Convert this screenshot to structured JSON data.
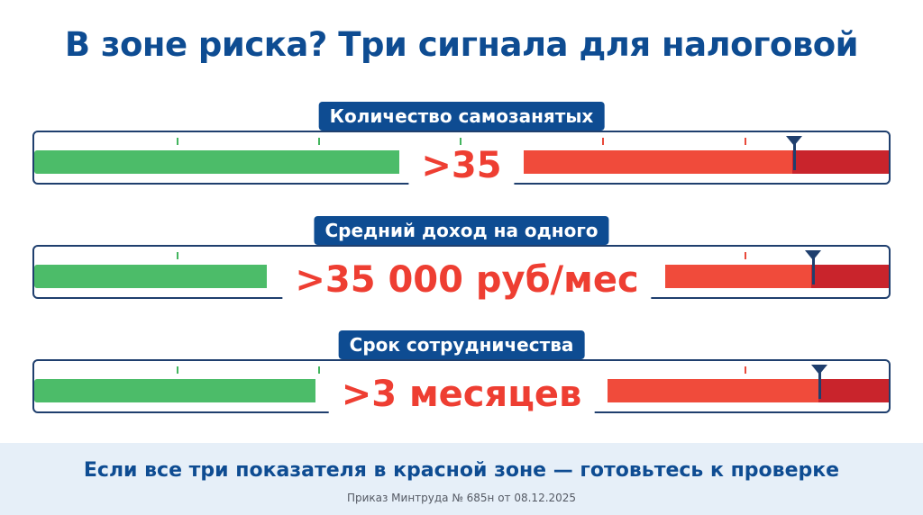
{
  "title": "В зоне риска? Три сигнала для налоговой",
  "gauges": [
    {
      "label": "Количество самозанятых",
      "value": ">35",
      "marker_fraction": 0.885
    },
    {
      "label": "Средний доход на одного",
      "value": ">35 000 руб/мес",
      "marker_fraction": 0.91
    },
    {
      "label": "Срок сотрудничества",
      "value": ">3 месяцев",
      "marker_fraction": 0.915
    }
  ],
  "footer": {
    "main": "Если все три показателя в красной зоне — готовьтесь к проверке",
    "note": "Приказ Минтруда № 685н от 08.12.2025"
  },
  "colors": {
    "brand_blue": "#0e4c92",
    "green_zone": "#4cbc69",
    "red_zone": "#f04b3b",
    "dark_red_zone": "#c9242c",
    "value_red": "#ee3e32"
  }
}
